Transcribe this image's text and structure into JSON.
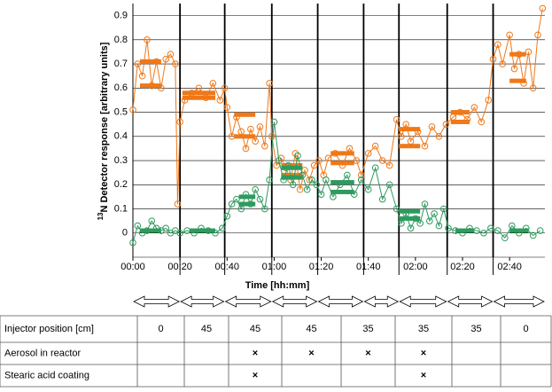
{
  "chart_data": {
    "type": "line",
    "x_label": "Time [hh:mm]",
    "y_label_sup": "13",
    "y_label": "N Detector response [arbitrary units]",
    "xlim": [
      0,
      175
    ],
    "xticks": [
      {
        "value": 0,
        "label": "00:00"
      },
      {
        "value": 20,
        "label": "00:20"
      },
      {
        "value": 40,
        "label": "00:40"
      },
      {
        "value": 60,
        "label": "01:00"
      },
      {
        "value": 80,
        "label": "01:20"
      },
      {
        "value": 100,
        "label": "01:40"
      },
      {
        "value": 120,
        "label": "02:00"
      },
      {
        "value": 140,
        "label": "02:20"
      },
      {
        "value": 160,
        "label": "02:40"
      }
    ],
    "ylim": [
      -0.1,
      0.95
    ],
    "yticks": [
      0,
      0.1,
      0.2,
      0.3,
      0.4,
      0.5,
      0.6,
      0.7,
      0.8,
      0.9
    ],
    "grid": true,
    "segment_boundaries": [
      20,
      39,
      59,
      78.5,
      98,
      113,
      133.5,
      153
    ],
    "series": [
      {
        "color": "#f07818",
        "x": [
          0,
          2,
          4,
          6,
          8,
          10,
          12,
          14,
          16,
          18,
          19,
          20,
          22,
          25,
          28,
          31,
          34,
          37,
          39,
          40,
          42,
          44,
          46,
          48,
          50,
          52,
          54,
          56,
          58,
          59,
          61,
          63,
          65,
          67,
          69,
          71,
          73,
          75,
          77,
          79,
          81,
          83,
          86,
          89,
          92,
          95,
          97,
          100,
          103,
          106,
          109,
          112,
          114,
          116,
          118,
          121,
          124,
          127,
          130,
          133,
          136,
          139,
          142,
          145,
          148,
          151,
          153,
          155,
          157,
          160,
          162,
          164,
          166,
          168,
          170,
          172,
          174
        ],
        "values": [
          0.51,
          0.7,
          0.65,
          0.8,
          0.61,
          0.71,
          0.6,
          0.72,
          0.74,
          0.7,
          0.12,
          0.46,
          0.55,
          0.58,
          0.6,
          0.56,
          0.62,
          0.55,
          0.6,
          0.52,
          0.4,
          0.48,
          0.42,
          0.35,
          0.43,
          0.38,
          0.44,
          0.36,
          0.62,
          0.4,
          0.28,
          0.31,
          0.27,
          0.22,
          0.33,
          0.18,
          0.26,
          0.22,
          0.28,
          0.3,
          0.24,
          0.31,
          0.33,
          0.28,
          0.35,
          0.3,
          0.24,
          0.33,
          0.36,
          0.3,
          0.28,
          0.47,
          0.4,
          0.45,
          0.38,
          0.42,
          0.36,
          0.44,
          0.4,
          0.45,
          0.48,
          0.5,
          0.47,
          0.52,
          0.46,
          0.55,
          0.72,
          0.78,
          0.7,
          0.82,
          0.68,
          0.74,
          0.62,
          0.75,
          0.6,
          0.82,
          0.93
        ],
        "levels": [
          {
            "from": 3,
            "to": 12,
            "value": 0.71
          },
          {
            "from": 3,
            "to": 12,
            "value": 0.61
          },
          {
            "from": 21,
            "to": 35,
            "value": 0.58
          },
          {
            "from": 21,
            "to": 35,
            "value": 0.56
          },
          {
            "from": 43,
            "to": 52,
            "value": 0.49
          },
          {
            "from": 43,
            "to": 52,
            "value": 0.4
          },
          {
            "from": 63,
            "to": 72,
            "value": 0.28
          },
          {
            "from": 63,
            "to": 72,
            "value": 0.24
          },
          {
            "from": 84,
            "to": 94,
            "value": 0.33
          },
          {
            "from": 84,
            "to": 94,
            "value": 0.29
          },
          {
            "from": 113,
            "to": 122,
            "value": 0.43
          },
          {
            "from": 113,
            "to": 122,
            "value": 0.36
          },
          {
            "from": 135,
            "to": 143,
            "value": 0.5
          },
          {
            "from": 135,
            "to": 143,
            "value": 0.46
          },
          {
            "from": 160,
            "to": 167,
            "value": 0.74
          },
          {
            "from": 160,
            "to": 167,
            "value": 0.63
          }
        ]
      },
      {
        "color": "#2e9a5e",
        "x": [
          0,
          2,
          4,
          6,
          8,
          10,
          12,
          14,
          16,
          18,
          20,
          23,
          26,
          29,
          32,
          35,
          38,
          40,
          42,
          44,
          46,
          48,
          50,
          52,
          54,
          56,
          58,
          60,
          62,
          64,
          66,
          68,
          70,
          72,
          74,
          76,
          78,
          80,
          82,
          85,
          88,
          91,
          94,
          97,
          100,
          103,
          106,
          109,
          112,
          114,
          116,
          118,
          120,
          122,
          124,
          126,
          128,
          130,
          132,
          134,
          137,
          140,
          143,
          146,
          149,
          152,
          155,
          158,
          161,
          164,
          167,
          170,
          173
        ],
        "values": [
          -0.04,
          0.03,
          0.0,
          0.01,
          0.05,
          0.02,
          0.01,
          0.02,
          0.0,
          0.01,
          0.0,
          0.01,
          0.0,
          0.02,
          0.01,
          0.0,
          0.02,
          0.07,
          0.12,
          0.14,
          0.1,
          0.16,
          0.12,
          0.18,
          0.14,
          0.1,
          0.22,
          0.46,
          0.3,
          0.22,
          0.28,
          0.2,
          0.32,
          0.24,
          0.18,
          0.22,
          0.2,
          0.16,
          0.22,
          0.15,
          0.2,
          0.24,
          0.16,
          0.22,
          0.18,
          0.27,
          0.14,
          0.2,
          0.1,
          0.04,
          0.08,
          0.02,
          0.06,
          0.04,
          0.12,
          0.05,
          0.08,
          0.03,
          0.1,
          0.02,
          0.01,
          0.0,
          0.02,
          0.01,
          0.0,
          0.02,
          0.01,
          -0.02,
          0.03,
          0.0,
          0.02,
          -0.01,
          0.01
        ],
        "levels": [
          {
            "from": 3,
            "to": 12,
            "value": 0.01
          },
          {
            "from": 24,
            "to": 35,
            "value": 0.01
          },
          {
            "from": 45,
            "to": 52,
            "value": 0.15
          },
          {
            "from": 45,
            "to": 52,
            "value": 0.12
          },
          {
            "from": 63,
            "to": 72,
            "value": 0.27
          },
          {
            "from": 63,
            "to": 72,
            "value": 0.23
          },
          {
            "from": 84,
            "to": 94,
            "value": 0.21
          },
          {
            "from": 84,
            "to": 94,
            "value": 0.17
          },
          {
            "from": 113,
            "to": 122,
            "value": 0.09
          },
          {
            "from": 113,
            "to": 122,
            "value": 0.06
          },
          {
            "from": 137,
            "to": 145,
            "value": 0.01
          },
          {
            "from": 160,
            "to": 168,
            "value": 0.01
          }
        ]
      }
    ]
  },
  "table": {
    "rows": [
      [
        "Injector position [cm]",
        "0",
        "45",
        "45",
        "45",
        "35",
        "35",
        "35",
        "0"
      ],
      [
        "Aerosol in reactor",
        null,
        null,
        "×",
        "×",
        "×",
        "×",
        null,
        null
      ],
      [
        "Stearic acid coating",
        null,
        null,
        "×",
        null,
        null,
        "×",
        null,
        null
      ]
    ]
  }
}
